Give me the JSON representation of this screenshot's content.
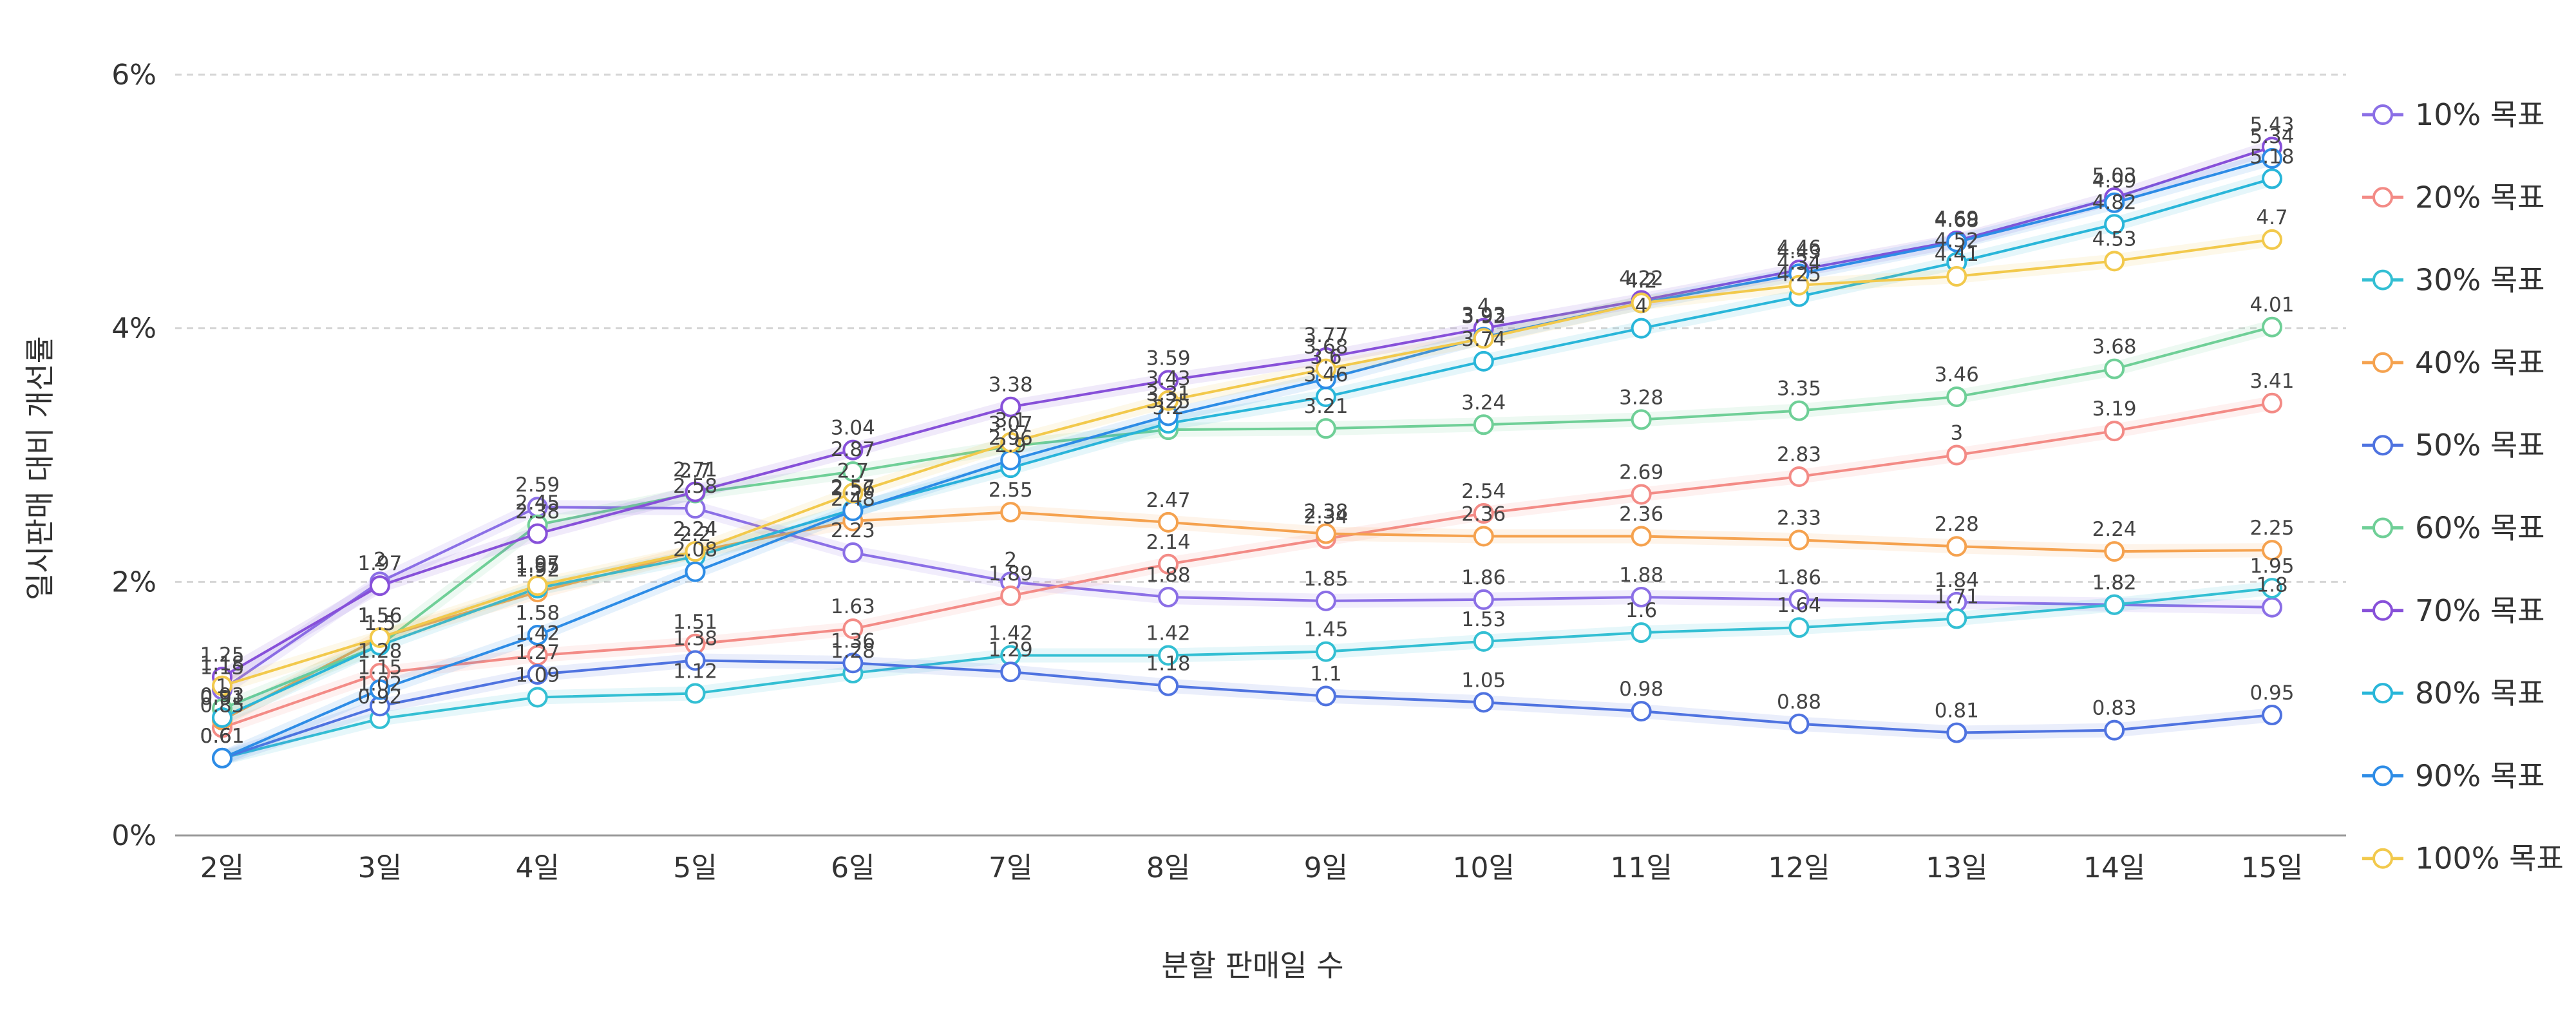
{
  "chart_data": {
    "type": "line",
    "title": "",
    "xlabel": "분할 판매일 수",
    "ylabel": "일시판매 대비 개선률",
    "categories": [
      "2일",
      "3일",
      "4일",
      "5일",
      "6일",
      "7일",
      "8일",
      "9일",
      "10일",
      "11일",
      "12일",
      "13일",
      "14일",
      "15일"
    ],
    "ylim": [
      0,
      6
    ],
    "yticks": [
      0,
      2,
      4,
      6
    ],
    "ytick_labels": [
      "0%",
      "2%",
      "4%",
      "6%"
    ],
    "grid": true,
    "legend_position": "right",
    "series": [
      {
        "name": "10% 목표",
        "color": "#8b6fe6",
        "values": [
          1.15,
          2.0,
          2.59,
          2.58,
          2.23,
          2.0,
          1.88,
          1.85,
          1.86,
          1.88,
          1.86,
          1.84,
          1.82,
          1.8
        ]
      },
      {
        "name": "20% 목표",
        "color": "#f38b86",
        "values": [
          0.85,
          1.28,
          1.42,
          1.51,
          1.63,
          1.89,
          2.14,
          2.34,
          2.54,
          2.69,
          2.83,
          3.0,
          3.19,
          3.41
        ]
      },
      {
        "name": "30% 목표",
        "color": "#33bfd3",
        "values": [
          0.61,
          0.92,
          1.09,
          1.12,
          1.28,
          1.42,
          1.42,
          1.45,
          1.53,
          1.6,
          1.64,
          1.71,
          1.82,
          1.95
        ]
      },
      {
        "name": "40% 목표",
        "color": "#f5a24f",
        "values": [
          0.91,
          1.56,
          1.92,
          2.24,
          2.48,
          2.55,
          2.47,
          2.38,
          2.36,
          2.36,
          2.33,
          2.28,
          2.24,
          2.25
        ]
      },
      {
        "name": "50% 목표",
        "color": "#4f73e0",
        "values": [
          0.61,
          1.02,
          1.27,
          1.38,
          1.36,
          1.29,
          1.18,
          1.1,
          1.05,
          0.98,
          0.88,
          0.81,
          0.83,
          0.95
        ]
      },
      {
        "name": "60% 목표",
        "color": "#6fcf97",
        "values": [
          1.0,
          1.5,
          2.45,
          2.7,
          2.87,
          3.07,
          3.2,
          3.21,
          3.24,
          3.28,
          3.35,
          3.46,
          3.68,
          4.01
        ]
      },
      {
        "name": "70% 목표",
        "color": "#8750d9",
        "values": [
          1.25,
          1.97,
          2.38,
          2.71,
          3.04,
          3.38,
          3.59,
          3.77,
          4.0,
          4.22,
          4.46,
          4.69,
          5.03,
          5.43
        ]
      },
      {
        "name": "80% 목표",
        "color": "#29b6d9",
        "values": [
          0.93,
          1.5,
          1.95,
          2.2,
          2.57,
          2.9,
          3.25,
          3.46,
          3.74,
          4.0,
          4.25,
          4.52,
          4.82,
          5.18
        ]
      },
      {
        "name": "90% 목표",
        "color": "#2d8ce6",
        "values": [
          0.61,
          1.15,
          1.58,
          2.08,
          2.56,
          2.96,
          3.31,
          3.6,
          3.93,
          4.2,
          4.43,
          4.68,
          4.99,
          5.34
        ]
      },
      {
        "name": "100% 목표",
        "color": "#f2c94c",
        "values": [
          1.18,
          1.56,
          1.97,
          2.24,
          2.7,
          3.1,
          3.43,
          3.68,
          3.92,
          4.2,
          4.34,
          4.41,
          4.53,
          4.7
        ]
      }
    ]
  }
}
